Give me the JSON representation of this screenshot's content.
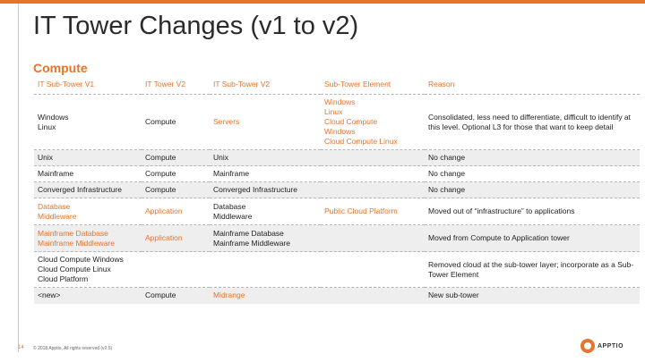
{
  "page": {
    "title": "IT Tower Changes (v1 to v2)",
    "section": "Compute"
  },
  "table": {
    "headers": [
      "IT Sub-Tower V1",
      "IT Tower V2",
      "IT Sub-Tower V2",
      "Sub-Tower Element",
      "Reason"
    ],
    "rows": [
      [
        "Windows\nLinux",
        "Compute",
        "Servers",
        "Windows\nLinux\nCloud Compute\nWindows\nCloud Compute Linux",
        "Consolidated, less need to differentiate, difficult to identify at this level. Optional L3 for those that want to keep detail"
      ],
      [
        "Unix",
        "Compute",
        "Unix",
        "",
        "No change"
      ],
      [
        "Mainframe",
        "Compute",
        "Mainframe",
        "",
        "No change"
      ],
      [
        "Converged Infrastructure",
        "Compute",
        "Converged Infrastructure",
        "",
        "No change"
      ],
      [
        "Database\nMiddleware",
        "Application",
        "Database\nMiddleware",
        "Public Cloud Platform",
        "Moved out of “infrastructure” to applications"
      ],
      [
        "Mainframe Database\nMainframe Middleware",
        "Application",
        "Mainframe Database\nMainframe Middleware",
        "",
        "Moved from Compute to Application tower"
      ],
      [
        "Cloud Compute Windows\nCloud Compute Linux\nCloud Platform",
        "",
        "",
        "",
        "Removed cloud at the sub-tower layer; incorporate as a Sub-Tower Element"
      ],
      [
        "<new>",
        "Compute",
        "Midrange",
        "",
        "New sub-tower"
      ]
    ]
  },
  "footer": {
    "page_number": "14",
    "copyright": "© 2018 Apptio, All rights reserved (v2.5)",
    "logo_text": "APPTIO"
  },
  "colors": {
    "accent": "#e8742a",
    "stripe": "#eeeeee"
  }
}
